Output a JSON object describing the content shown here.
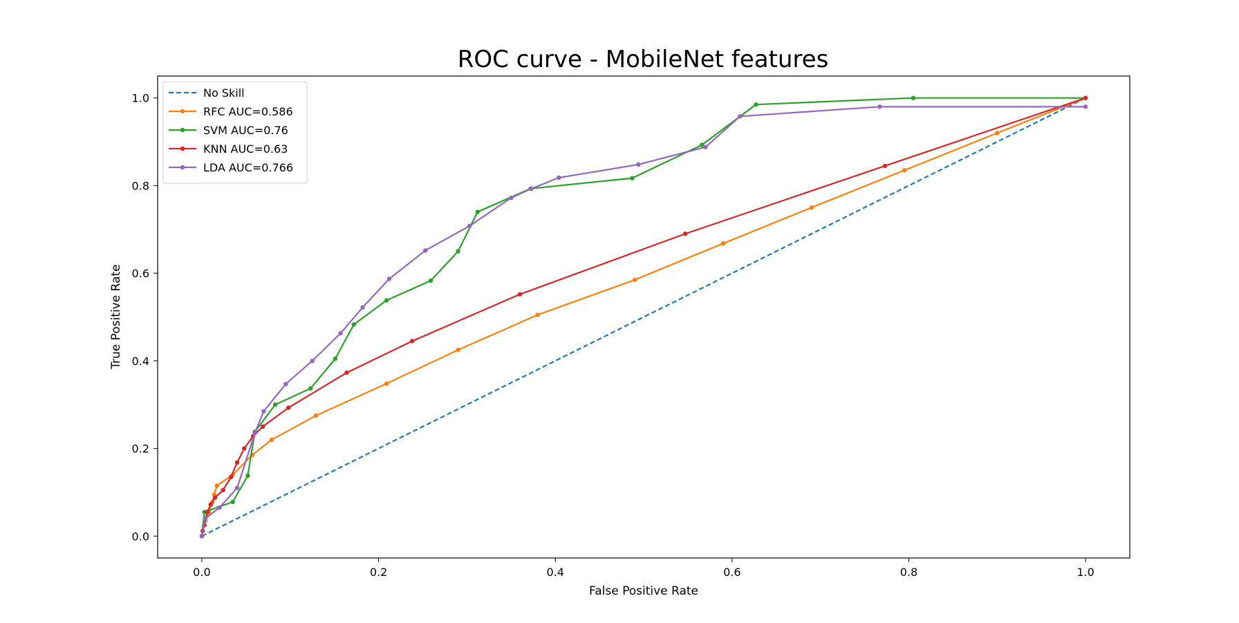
{
  "chart_data": {
    "type": "line",
    "title": "ROC curve - MobileNet features",
    "xlabel": "False Positive Rate",
    "ylabel": "True Positive Rate",
    "xlim": [
      -0.05,
      1.05
    ],
    "ylim": [
      -0.05,
      1.05
    ],
    "x_ticks": [
      "0.0",
      "0.2",
      "0.4",
      "0.6",
      "0.8",
      "1.0"
    ],
    "y_ticks": [
      "0.0",
      "0.2",
      "0.4",
      "0.6",
      "0.8",
      "1.0"
    ],
    "grid": false,
    "legend_position": "top-left",
    "series": [
      {
        "name": "No Skill",
        "color": "#1f77b4",
        "style": "dashed",
        "markers": false,
        "x": [
          0,
          1
        ],
        "y": [
          0,
          1
        ]
      },
      {
        "name": "RFC AUC=0.586",
        "color": "#ff7f0e",
        "style": "solid",
        "markers": true,
        "x": [
          0,
          0.004,
          0.008,
          0.012,
          0.014,
          0.017,
          0.035,
          0.057,
          0.079,
          0.129,
          0.209,
          0.29,
          0.38,
          0.49,
          0.59,
          0.69,
          0.795,
          0.9,
          1.0
        ],
        "y": [
          0,
          0.035,
          0.055,
          0.078,
          0.095,
          0.115,
          0.14,
          0.185,
          0.22,
          0.275,
          0.348,
          0.425,
          0.505,
          0.585,
          0.668,
          0.75,
          0.835,
          0.92,
          1.0
        ]
      },
      {
        "name": "SVM AUC=0.76",
        "color": "#2ca02c",
        "style": "solid",
        "markers": true,
        "x": [
          0,
          0.003,
          0.035,
          0.052,
          0.06,
          0.083,
          0.123,
          0.151,
          0.172,
          0.209,
          0.259,
          0.29,
          0.312,
          0.372,
          0.487,
          0.566,
          0.627,
          0.805,
          1.0
        ],
        "y": [
          0,
          0.055,
          0.078,
          0.138,
          0.238,
          0.3,
          0.337,
          0.405,
          0.483,
          0.538,
          0.583,
          0.65,
          0.74,
          0.793,
          0.817,
          0.893,
          0.985,
          1.0,
          1.0
        ]
      },
      {
        "name": "KNN AUC=0.63",
        "color": "#d62728",
        "style": "solid",
        "markers": true,
        "x": [
          0,
          0.001,
          0.003,
          0.006,
          0.01,
          0.015,
          0.024,
          0.033,
          0.04,
          0.048,
          0.058,
          0.069,
          0.098,
          0.164,
          0.238,
          0.36,
          0.547,
          0.773,
          1.0
        ],
        "y": [
          0,
          0.012,
          0.025,
          0.055,
          0.072,
          0.088,
          0.105,
          0.135,
          0.168,
          0.2,
          0.228,
          0.25,
          0.293,
          0.373,
          0.445,
          0.552,
          0.69,
          0.845,
          1.0
        ]
      },
      {
        "name": "LDA AUC=0.766",
        "color": "#9467bd",
        "style": "solid",
        "markers": true,
        "x": [
          0,
          0.004,
          0.02,
          0.04,
          0.06,
          0.07,
          0.095,
          0.125,
          0.157,
          0.182,
          0.212,
          0.253,
          0.303,
          0.35,
          0.373,
          0.404,
          0.494,
          0.57,
          0.609,
          0.767,
          1.0
        ],
        "y": [
          0,
          0.04,
          0.065,
          0.11,
          0.235,
          0.285,
          0.347,
          0.4,
          0.463,
          0.522,
          0.587,
          0.652,
          0.708,
          0.772,
          0.793,
          0.818,
          0.848,
          0.888,
          0.958,
          0.98,
          0.98
        ]
      }
    ]
  }
}
